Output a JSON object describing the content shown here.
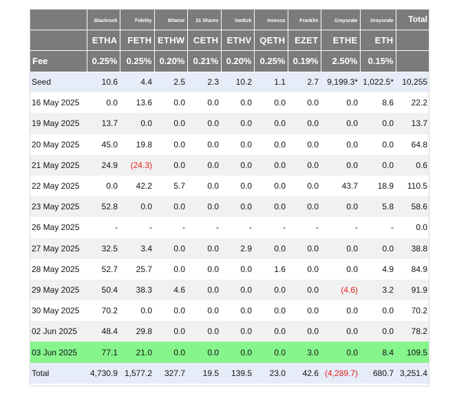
{
  "header": {
    "issuers": [
      "",
      "Blackrock",
      "Fidelity",
      "Bitwise",
      "21 Shares",
      "VanEck",
      "Invesco",
      "Franklin",
      "Grayscale",
      "Grayscale",
      "Total"
    ],
    "tickers": [
      "",
      "ETHA",
      "FETH",
      "ETHW",
      "CETH",
      "ETHV",
      "QETH",
      "EZET",
      "ETHE",
      "ETH",
      ""
    ],
    "fees": [
      "Fee",
      "0.25%",
      "0.25%",
      "0.20%",
      "0.21%",
      "0.20%",
      "0.25%",
      "0.19%",
      "2.50%",
      "0.15%",
      ""
    ]
  },
  "rows": [
    {
      "label": "Seed",
      "values": [
        "10.6",
        "4.4",
        "2.5",
        "2.3",
        "10.2",
        "1.1",
        "2.7",
        "9,199.3*",
        "1,022.5*",
        "10,255"
      ],
      "style": "seed"
    },
    {
      "label": "16 May 2025",
      "values": [
        "0.0",
        "13.6",
        "0.0",
        "0.0",
        "0.0",
        "0.0",
        "0.0",
        "0.0",
        "8.6",
        "22.2"
      ],
      "style": "even"
    },
    {
      "label": "19 May 2025",
      "values": [
        "13.7",
        "0.0",
        "0.0",
        "0.0",
        "0.0",
        "0.0",
        "0.0",
        "0.0",
        "0.0",
        "13.7"
      ],
      "style": "odd"
    },
    {
      "label": "20 May 2025",
      "values": [
        "45.0",
        "19.8",
        "0.0",
        "0.0",
        "0.0",
        "0.0",
        "0.0",
        "0.0",
        "0.0",
        "64.8"
      ],
      "style": "even"
    },
    {
      "label": "21 May 2025",
      "values": [
        "24.9",
        "(24.3)",
        "0.0",
        "0.0",
        "0.0",
        "0.0",
        "0.0",
        "0.0",
        "0.0",
        "0.6"
      ],
      "style": "odd"
    },
    {
      "label": "22 May 2025",
      "values": [
        "0.0",
        "42.2",
        "5.7",
        "0.0",
        "0.0",
        "0.0",
        "0.0",
        "43.7",
        "18.9",
        "110.5"
      ],
      "style": "even"
    },
    {
      "label": "23 May 2025",
      "values": [
        "52.8",
        "0.0",
        "0.0",
        "0.0",
        "0.0",
        "0.0",
        "0.0",
        "0.0",
        "5.8",
        "58.6"
      ],
      "style": "odd"
    },
    {
      "label": "26 May 2025",
      "values": [
        "-",
        "-",
        "-",
        "-",
        "-",
        "-",
        "-",
        "-",
        "-",
        "0.0"
      ],
      "style": "even"
    },
    {
      "label": "27 May 2025",
      "values": [
        "32.5",
        "3.4",
        "0.0",
        "0.0",
        "2.9",
        "0.0",
        "0.0",
        "0.0",
        "0.0",
        "38.8"
      ],
      "style": "odd"
    },
    {
      "label": "28 May 2025",
      "values": [
        "52.7",
        "25.7",
        "0.0",
        "0.0",
        "0.0",
        "1.6",
        "0.0",
        "0.0",
        "4.9",
        "84.9"
      ],
      "style": "even"
    },
    {
      "label": "29 May 2025",
      "values": [
        "50.4",
        "38.3",
        "4.6",
        "0.0",
        "0.0",
        "0.0",
        "0.0",
        "(4.6)",
        "3.2",
        "91.9"
      ],
      "style": "odd"
    },
    {
      "label": "30 May 2025",
      "values": [
        "70.2",
        "0.0",
        "0.0",
        "0.0",
        "0.0",
        "0.0",
        "0.0",
        "0.0",
        "0.0",
        "70.2"
      ],
      "style": "even"
    },
    {
      "label": "02 Jun 2025",
      "values": [
        "48.4",
        "29.8",
        "0.0",
        "0.0",
        "0.0",
        "0.0",
        "0.0",
        "0.0",
        "0.0",
        "78.2"
      ],
      "style": "odd"
    },
    {
      "label": "03 Jun 2025",
      "values": [
        "77.1",
        "21.0",
        "0.0",
        "0.0",
        "0.0",
        "0.0",
        "3.0",
        "0.0",
        "8.4",
        "109.5"
      ],
      "style": "hl"
    },
    {
      "label": "Total",
      "values": [
        "4,730.9",
        "1,577.2",
        "327.7",
        "19.5",
        "139.5",
        "23.0",
        "42.6",
        "(4,289.7)",
        "680.7",
        "3,251.4"
      ],
      "style": "total"
    }
  ],
  "colors": {
    "header_bg": "#7b7b7b",
    "highlight_row": "#86f58c",
    "seed_total_bg": "#e6ecf8",
    "stripe": "#f1f1f1",
    "negative": "#e0201b"
  }
}
